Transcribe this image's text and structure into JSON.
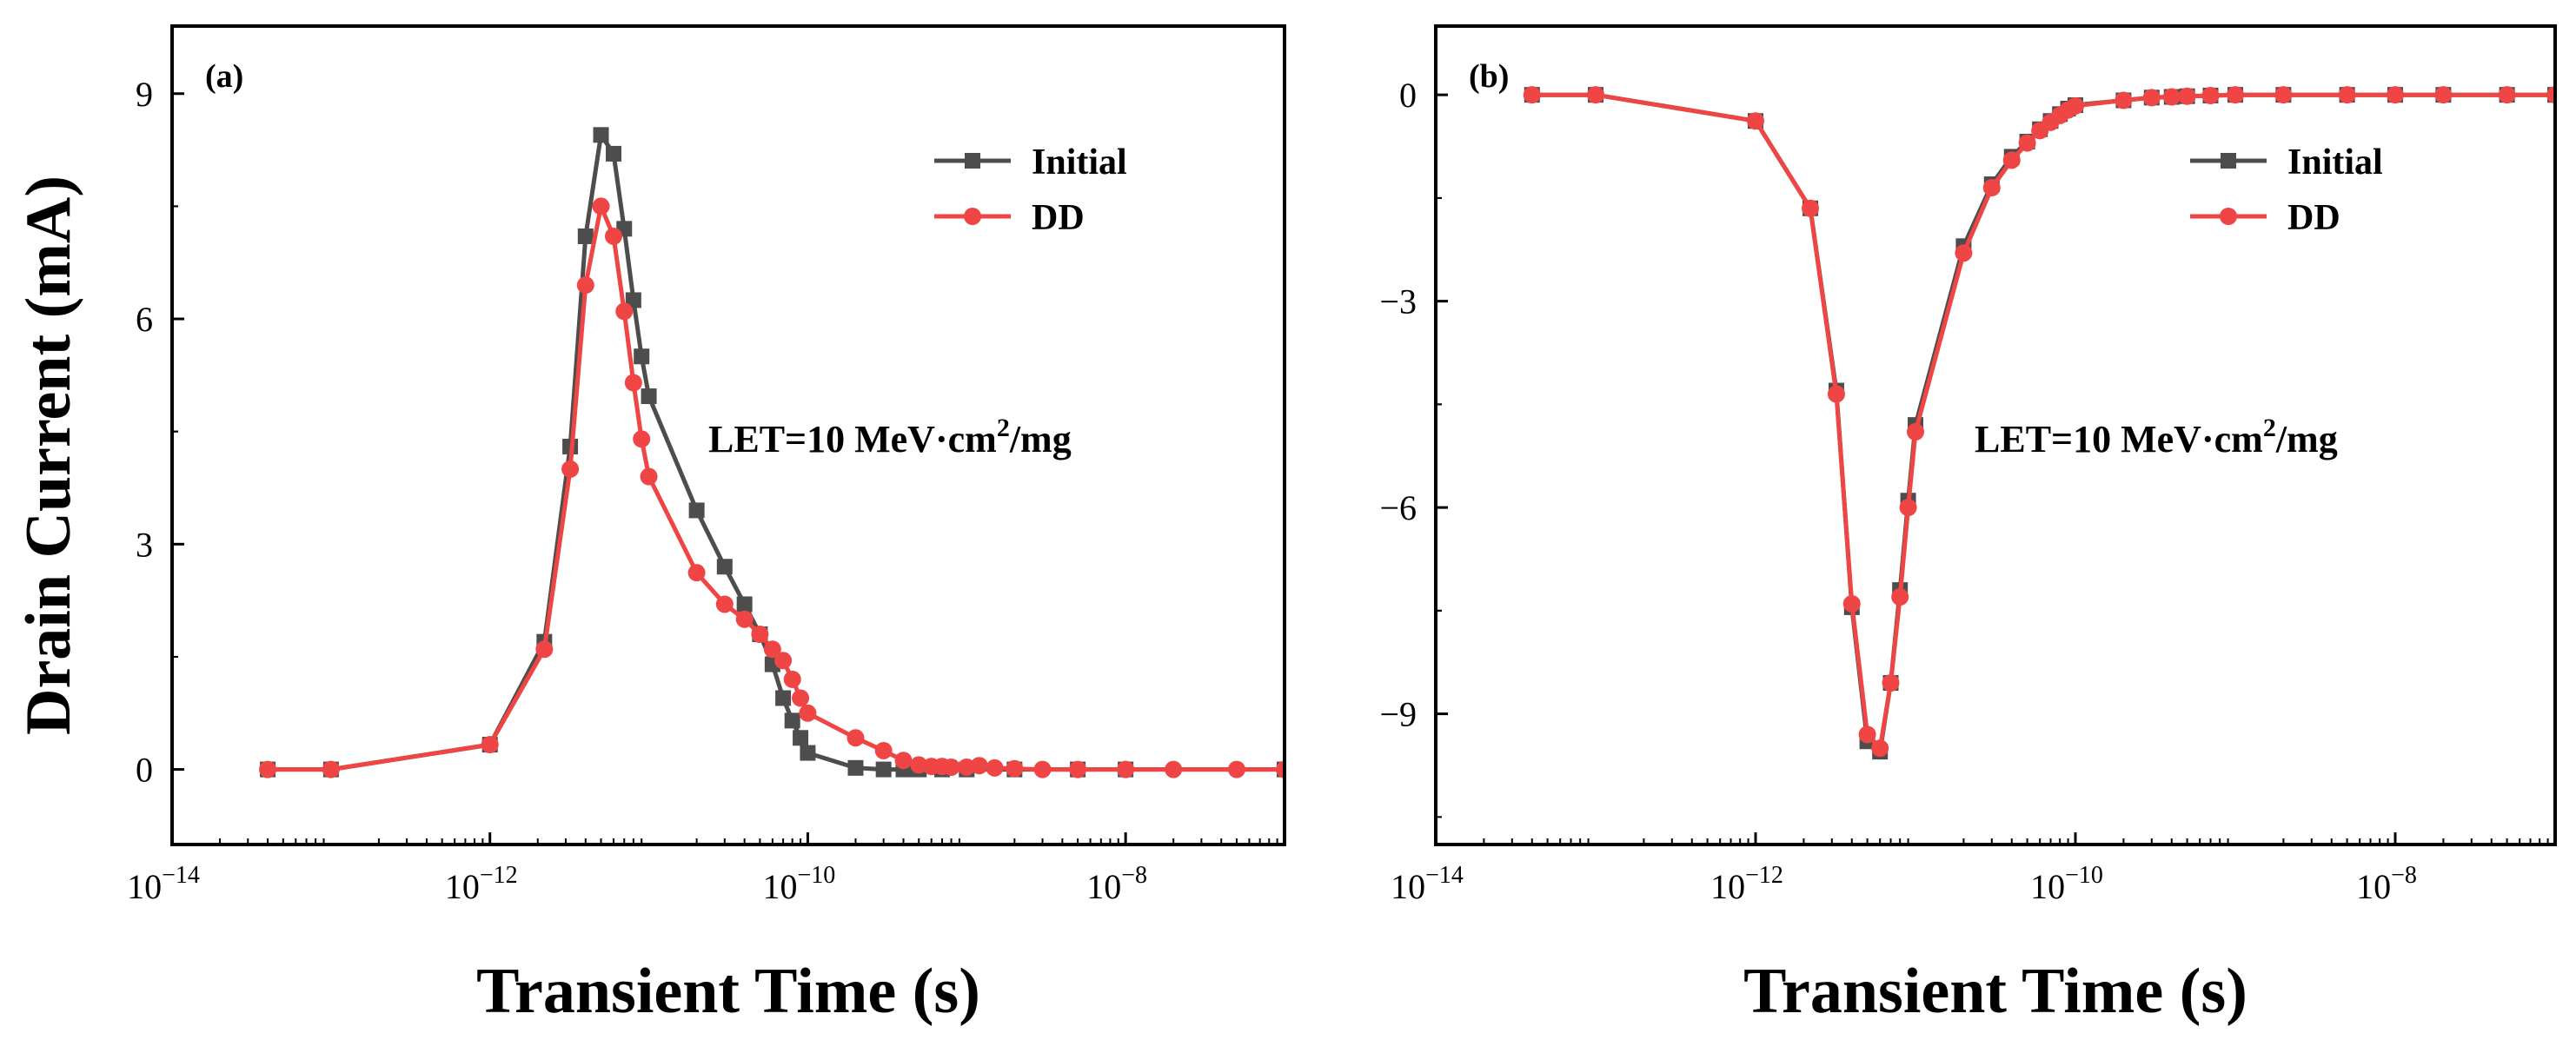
{
  "figure": {
    "ylabel": "Drain Current (mA)",
    "xlabel": "Transient Time (s)"
  },
  "colors": {
    "initial": "#4d4d4d",
    "dd": "#f04545",
    "axis": "#000000"
  },
  "icons": {
    "initial_marker": "square-marker",
    "dd_marker": "circle-marker"
  },
  "chart_data": [
    {
      "type": "line",
      "panel_label": "(a)",
      "annotation": {
        "prefix": "LET=10 MeV·cm",
        "sup": "2",
        "suffix": "/mg"
      },
      "xlabel": "Transient Time (s)",
      "ylabel": "Drain Current (mA)",
      "xscale": "log",
      "xlim": [
        1e-14,
        1e-07
      ],
      "ylim": [
        -1,
        9.9
      ],
      "xticks": [
        -14,
        -12,
        -10,
        -8
      ],
      "xtick_labels": [
        {
          "base": "10",
          "exp": "−14"
        },
        {
          "base": "10",
          "exp": "−12"
        },
        {
          "base": "10",
          "exp": "−10"
        },
        {
          "base": "10",
          "exp": "−8"
        }
      ],
      "yticks": [
        0,
        3,
        6,
        9
      ],
      "ytick_labels": [
        "0",
        "3",
        "6",
        "9"
      ],
      "legend_position": "top-right",
      "series": [
        {
          "name": "Initial",
          "marker": "square",
          "x": [
            4e-14,
            1e-13,
            1e-12,
            2.2e-12,
            3.2e-12,
            4e-12,
            5e-12,
            6e-12,
            7e-12,
            8e-12,
            9e-12,
            1e-11,
            2e-11,
            3e-11,
            4e-11,
            5e-11,
            6e-11,
            7e-11,
            8e-11,
            9e-11,
            1e-10,
            2e-10,
            3e-10,
            4e-10,
            5e-10,
            7e-10,
            1e-09,
            2e-09,
            5e-09,
            1e-08,
            1e-07
          ],
          "y": [
            0.0,
            0.0,
            0.33,
            1.7,
            4.3,
            7.1,
            8.45,
            8.2,
            7.2,
            6.25,
            5.5,
            4.97,
            3.45,
            2.7,
            2.2,
            1.8,
            1.4,
            0.95,
            0.65,
            0.42,
            0.22,
            0.02,
            0.0,
            0.0,
            0.0,
            0.0,
            0.0,
            0.0,
            0.0,
            0.0,
            0.0
          ]
        },
        {
          "name": "DD",
          "marker": "circle",
          "x": [
            4e-14,
            1e-13,
            1e-12,
            2.2e-12,
            3.2e-12,
            4e-12,
            5e-12,
            6e-12,
            7e-12,
            8e-12,
            9e-12,
            1e-11,
            2e-11,
            3e-11,
            4e-11,
            5e-11,
            6e-11,
            7e-11,
            8e-11,
            9e-11,
            1e-10,
            2e-10,
            3e-10,
            4e-10,
            5e-10,
            6e-10,
            7e-10,
            8e-10,
            1e-09,
            1.2e-09,
            1.5e-09,
            2e-09,
            3e-09,
            5e-09,
            1e-08,
            2e-08,
            5e-08,
            1e-07
          ],
          "y": [
            0.0,
            0.0,
            0.33,
            1.6,
            4.0,
            6.45,
            7.5,
            7.1,
            6.1,
            5.15,
            4.4,
            3.9,
            2.62,
            2.2,
            2.0,
            1.8,
            1.6,
            1.45,
            1.2,
            0.95,
            0.75,
            0.42,
            0.25,
            0.12,
            0.06,
            0.04,
            0.04,
            0.03,
            0.03,
            0.05,
            0.02,
            0.01,
            0.0,
            0.0,
            0.0,
            0.0,
            0.0,
            0.0
          ]
        }
      ]
    },
    {
      "type": "line",
      "panel_label": "(b)",
      "annotation": {
        "prefix": "LET=10 MeV·cm",
        "sup": "2",
        "suffix": "/mg"
      },
      "xlabel": "Transient Time (s)",
      "ylabel": "",
      "xscale": "log",
      "xlim": [
        1e-14,
        1e-07
      ],
      "ylim": [
        -10.9,
        1.0
      ],
      "xticks": [
        -14,
        -12,
        -10,
        -8
      ],
      "xtick_labels": [
        {
          "base": "10",
          "exp": "−14"
        },
        {
          "base": "10",
          "exp": "−12"
        },
        {
          "base": "10",
          "exp": "−10"
        },
        {
          "base": "10",
          "exp": "−8"
        }
      ],
      "yticks": [
        0,
        -3,
        -6,
        -9
      ],
      "ytick_labels": [
        "0",
        "−3",
        "−6",
        "−9"
      ],
      "legend_position": "top-right",
      "series": [
        {
          "name": "Initial",
          "marker": "square",
          "x": [
            4e-14,
            1e-13,
            1e-12,
            2.2e-12,
            3.2e-12,
            4e-12,
            5e-12,
            6e-12,
            7e-12,
            8e-12,
            9e-12,
            1e-11,
            2e-11,
            3e-11,
            4e-11,
            5e-11,
            6e-11,
            7e-11,
            8e-11,
            9e-11,
            1e-10,
            2e-10,
            3e-10,
            4e-10,
            5e-10,
            7e-10,
            1e-09,
            2e-09,
            5e-09,
            1e-08,
            2e-08,
            5e-08,
            1e-07
          ],
          "y": [
            0.0,
            0.0,
            -0.38,
            -1.65,
            -4.3,
            -7.45,
            -9.4,
            -9.55,
            -8.55,
            -7.2,
            -5.9,
            -4.8,
            -2.2,
            -1.3,
            -0.9,
            -0.68,
            -0.5,
            -0.38,
            -0.28,
            -0.2,
            -0.15,
            -0.08,
            -0.04,
            -0.03,
            -0.02,
            -0.01,
            0.0,
            0.0,
            0.0,
            0.0,
            0.0,
            0.0,
            0.0
          ]
        },
        {
          "name": "DD",
          "marker": "circle",
          "x": [
            4e-14,
            1e-13,
            1e-12,
            2.2e-12,
            3.2e-12,
            4e-12,
            5e-12,
            6e-12,
            7e-12,
            8e-12,
            9e-12,
            1e-11,
            2e-11,
            3e-11,
            4e-11,
            5e-11,
            6e-11,
            7e-11,
            8e-11,
            9e-11,
            1e-10,
            2e-10,
            3e-10,
            4e-10,
            5e-10,
            7e-10,
            1e-09,
            2e-09,
            5e-09,
            1e-08,
            2e-08,
            5e-08,
            1e-07
          ],
          "y": [
            0.0,
            0.0,
            -0.38,
            -1.65,
            -4.35,
            -7.4,
            -9.3,
            -9.5,
            -8.55,
            -7.3,
            -6.0,
            -4.9,
            -2.3,
            -1.35,
            -0.95,
            -0.7,
            -0.52,
            -0.4,
            -0.3,
            -0.22,
            -0.16,
            -0.08,
            -0.04,
            -0.03,
            -0.02,
            -0.01,
            0.0,
            0.0,
            0.0,
            0.0,
            0.0,
            0.0,
            0.0
          ]
        }
      ]
    }
  ]
}
